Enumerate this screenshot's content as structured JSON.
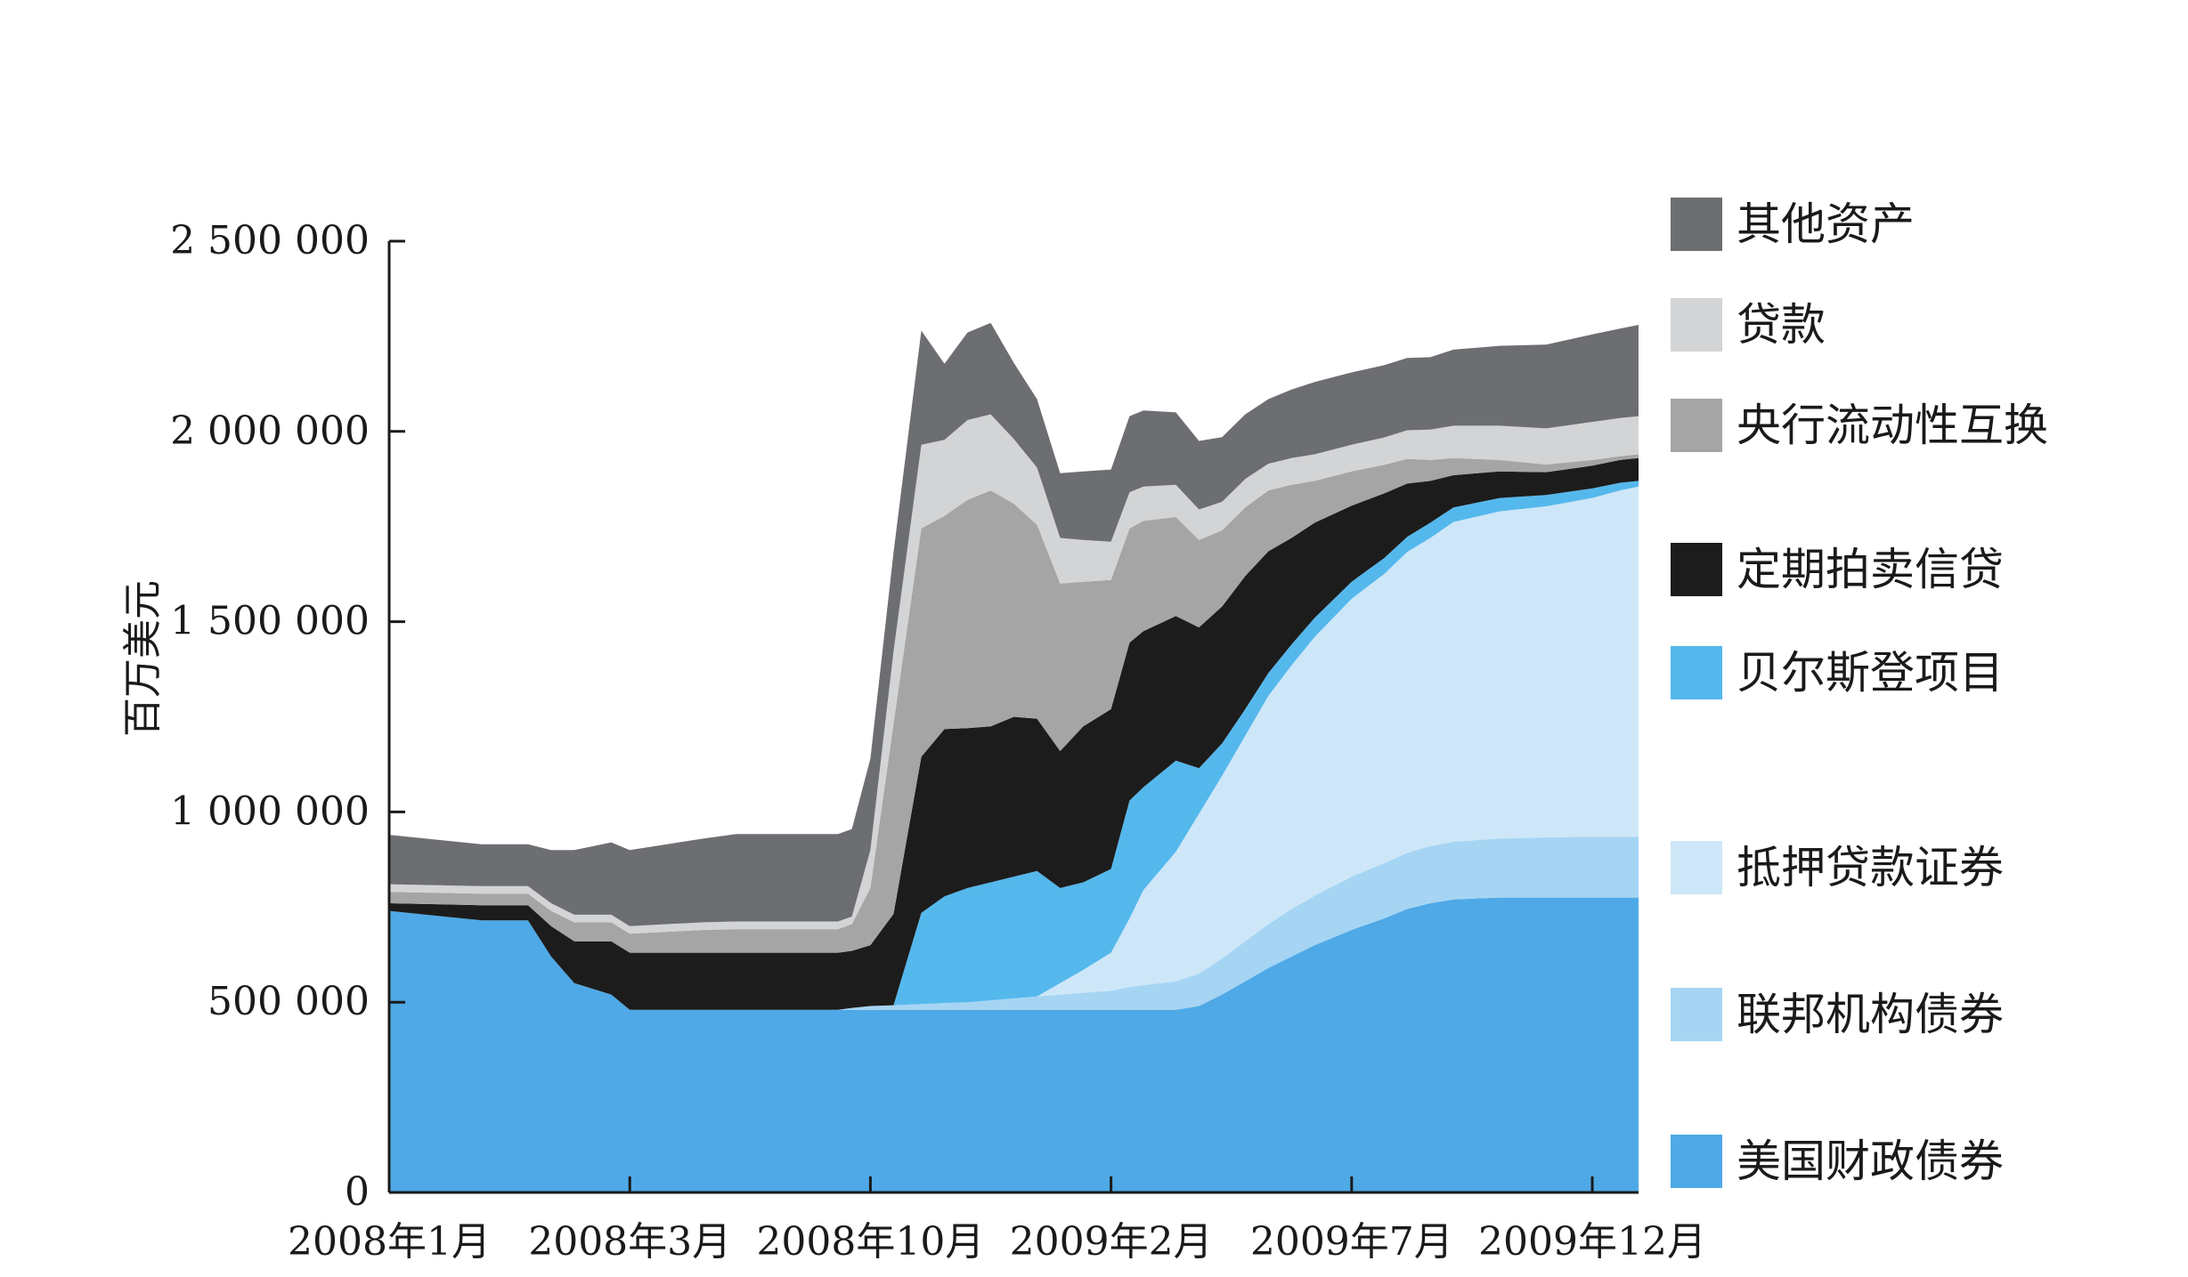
{
  "chart_data": {
    "type": "area",
    "stacked": true,
    "title": "",
    "xlabel": "",
    "ylabel": "百万美元",
    "ylim": [
      0,
      2500000
    ],
    "yticks": [
      0,
      500000,
      1000000,
      1500000,
      2000000,
      2500000
    ],
    "ytick_labels": [
      "0",
      "500 000",
      "1 000 000",
      "1 500 000",
      "2 000 000",
      "2 500 000"
    ],
    "x_tick_labels": [
      "2008年1月",
      "2008年3月",
      "2008年10月",
      "2009年2月",
      "2009年7月",
      "2009年12月"
    ],
    "x_tick_positions": [
      0,
      52,
      104,
      156,
      208,
      260
    ],
    "x_range": [
      0,
      270
    ],
    "x": [
      0,
      20,
      30,
      35,
      40,
      48,
      52,
      60,
      68,
      75,
      80,
      90,
      97,
      100,
      104,
      109,
      115,
      120,
      125,
      130,
      135,
      140,
      145,
      150,
      156,
      160,
      163,
      170,
      175,
      180,
      185,
      190,
      195,
      200,
      208,
      215,
      220,
      225,
      230,
      240,
      250,
      260,
      266,
      270
    ],
    "legend_position": "right",
    "series": [
      {
        "name": "美国财政债券",
        "color": "#4fa9e6",
        "values": [
          740000,
          715000,
          715000,
          620000,
          550000,
          520000,
          480000,
          480000,
          480000,
          480000,
          480000,
          480000,
          480000,
          480000,
          480000,
          480000,
          480000,
          480000,
          480000,
          480000,
          480000,
          480000,
          480000,
          480000,
          480000,
          480000,
          480000,
          480000,
          490000,
          520000,
          555000,
          590000,
          620000,
          650000,
          690000,
          720000,
          745000,
          760000,
          770000,
          775000,
          775000,
          775000,
          775000,
          775000
        ]
      },
      {
        "name": "联邦机构债券",
        "color": "#a5d5f3",
        "values": [
          0,
          0,
          0,
          0,
          0,
          0,
          0,
          0,
          0,
          0,
          0,
          0,
          0,
          5000,
          10000,
          12000,
          15000,
          18000,
          20000,
          25000,
          30000,
          35000,
          40000,
          45000,
          50000,
          60000,
          65000,
          75000,
          85000,
          95000,
          105000,
          115000,
          125000,
          130000,
          140000,
          145000,
          148000,
          150000,
          152000,
          155000,
          158000,
          160000,
          160000,
          160000
        ]
      },
      {
        "name": "抵押贷款证券",
        "color": "#cde7f8",
        "values": [
          0,
          0,
          0,
          0,
          0,
          0,
          0,
          0,
          0,
          0,
          0,
          0,
          0,
          0,
          0,
          0,
          0,
          0,
          0,
          0,
          0,
          0,
          30000,
          60000,
          100000,
          180000,
          250000,
          340000,
          420000,
          480000,
          540000,
          600000,
          640000,
          680000,
          730000,
          760000,
          790000,
          810000,
          840000,
          860000,
          870000,
          890000,
          910000,
          920000
        ]
      },
      {
        "name": "贝尔斯登项目",
        "color": "#55b8ec",
        "values": [
          0,
          0,
          0,
          0,
          0,
          0,
          0,
          0,
          0,
          0,
          0,
          0,
          0,
          0,
          0,
          0,
          240000,
          280000,
          300000,
          310000,
          320000,
          330000,
          250000,
          230000,
          220000,
          310000,
          270000,
          240000,
          120000,
          85000,
          70000,
          60000,
          55000,
          50000,
          45000,
          42000,
          40000,
          40000,
          38000,
          35000,
          30000,
          25000,
          20000,
          15000
        ]
      },
      {
        "name": "定期拍卖信贷",
        "color": "#1c1c1c",
        "values": [
          20000,
          40000,
          40000,
          80000,
          110000,
          140000,
          150000,
          150000,
          150000,
          150000,
          150000,
          150000,
          150000,
          150000,
          160000,
          240000,
          410000,
          440000,
          420000,
          410000,
          420000,
          400000,
          360000,
          410000,
          420000,
          415000,
          410000,
          380000,
          370000,
          360000,
          350000,
          320000,
          280000,
          250000,
          200000,
          170000,
          140000,
          110000,
          85000,
          70000,
          60000,
          60000,
          60000,
          60000
        ]
      },
      {
        "name": "央行流动性互换",
        "color": "#a5a5a6",
        "values": [
          30000,
          30000,
          30000,
          40000,
          50000,
          50000,
          50000,
          55000,
          60000,
          62000,
          62000,
          62000,
          62000,
          70000,
          150000,
          500000,
          600000,
          560000,
          600000,
          620000,
          560000,
          510000,
          440000,
          380000,
          340000,
          300000,
          290000,
          260000,
          230000,
          200000,
          180000,
          160000,
          140000,
          110000,
          90000,
          75000,
          65000,
          55000,
          45000,
          30000,
          20000,
          15000,
          10000,
          10000
        ]
      },
      {
        "name": "贷款",
        "color": "#d3d4d5",
        "values": [
          20000,
          20000,
          20000,
          20000,
          20000,
          20000,
          20000,
          20000,
          20000,
          20000,
          20000,
          20000,
          20000,
          20000,
          100000,
          190000,
          220000,
          200000,
          210000,
          200000,
          170000,
          150000,
          120000,
          110000,
          100000,
          95000,
          90000,
          85000,
          80000,
          75000,
          75000,
          70000,
          70000,
          70000,
          70000,
          72000,
          75000,
          80000,
          85000,
          90000,
          95000,
          100000,
          100000,
          100000
        ]
      },
      {
        "name": "其他资产",
        "color": "#6d6e72",
        "values": [
          130000,
          110000,
          110000,
          140000,
          170000,
          190000,
          200000,
          210000,
          220000,
          230000,
          230000,
          230000,
          230000,
          230000,
          240000,
          260000,
          300000,
          200000,
          230000,
          240000,
          200000,
          180000,
          170000,
          180000,
          190000,
          200000,
          200000,
          190000,
          180000,
          170000,
          170000,
          170000,
          180000,
          190000,
          190000,
          190000,
          190000,
          190000,
          200000,
          210000,
          220000,
          230000,
          235000,
          240000
        ]
      }
    ]
  }
}
